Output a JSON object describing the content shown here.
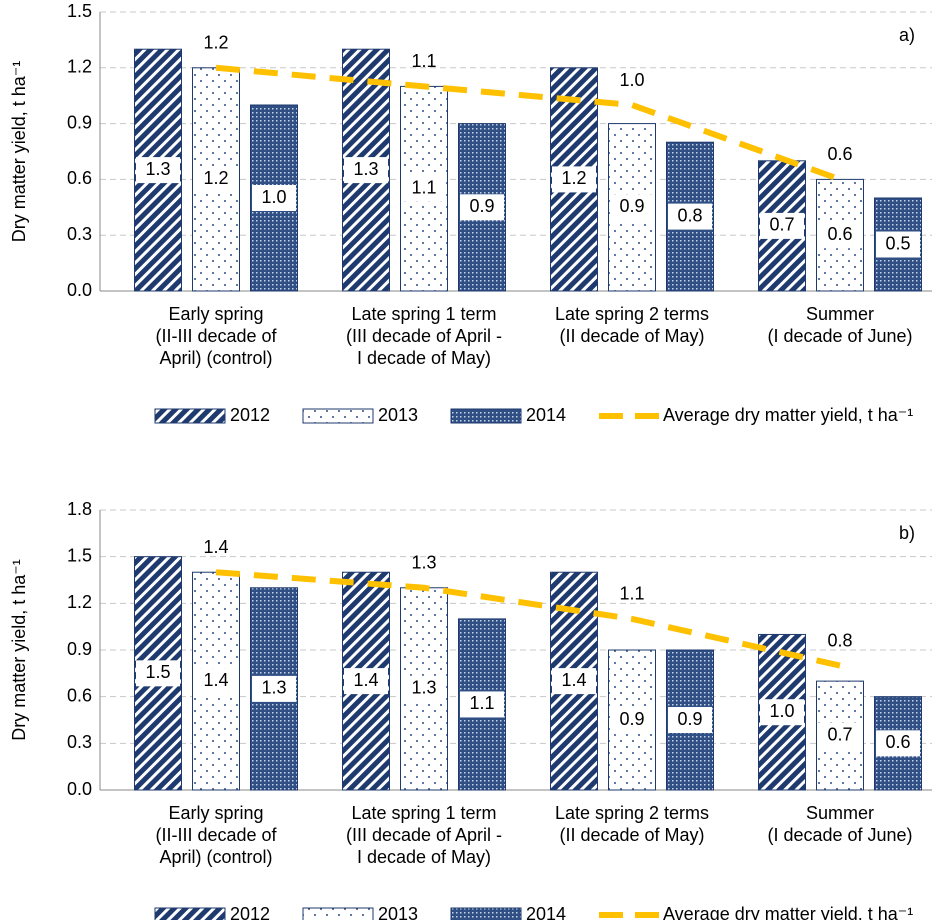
{
  "chart_data": [
    {
      "type": "bar",
      "panel_label": "a)",
      "y_label": "Dry matter yield, t ha⁻¹",
      "categories": [
        "Early spring\n(II-III decade of\nApril) (control)",
        "Late spring 1 term\n(III decade of April -\nI decade of May)",
        "Late spring 2 terms\n(II decade of May)",
        "Summer\n(I decade of June)"
      ],
      "series": [
        {
          "name": "2012",
          "color": "#1f3a6e",
          "values": [
            1.3,
            1.3,
            1.2,
            0.7
          ],
          "value_labels": [
            "1.3",
            "1.3",
            "1.2",
            "0.7"
          ]
        },
        {
          "name": "2013",
          "color": "#ffffff",
          "values": [
            1.2,
            1.1,
            0.9,
            0.6
          ],
          "value_labels": [
            "1.2",
            "1.1",
            "0.9",
            "0.6"
          ]
        },
        {
          "name": "2014",
          "color": "#2f4f85",
          "values": [
            1.0,
            0.9,
            0.8,
            0.5
          ],
          "value_labels": [
            "1.0",
            "0.9",
            "0.8",
            "0.5"
          ]
        },
        {
          "name": "Average dry matter yield, t ha⁻¹",
          "type": "line",
          "color": "#ffc000",
          "values": [
            1.2,
            1.1,
            1.0,
            0.6
          ],
          "value_labels": [
            "1.2",
            "1.1",
            "1.0",
            "0.6"
          ]
        }
      ],
      "ylim": [
        0,
        1.5
      ],
      "yticks": [
        {
          "value": 0,
          "label": "0.0"
        },
        0.3,
        0.6,
        0.9,
        1.2,
        1.5
      ],
      "grid": true
    },
    {
      "type": "bar",
      "panel_label": "b)",
      "y_label": "Dry matter yield, t ha⁻¹",
      "categories": [
        "Early spring\n(II-III decade of\nApril) (control)",
        "Late spring 1 term\n(III decade of April -\nI decade of May)",
        "Late spring 2 terms\n(II decade of May)",
        "Summer\n(I decade of June)"
      ],
      "series": [
        {
          "name": "2012",
          "color": "#1f3a6e",
          "values": [
            1.5,
            1.4,
            1.4,
            1.0
          ],
          "value_labels": [
            "1.5",
            "1.4",
            "1.4",
            "1.0"
          ]
        },
        {
          "name": "2013",
          "color": "#ffffff",
          "values": [
            1.4,
            1.3,
            0.9,
            0.7
          ],
          "value_labels": [
            "1.4",
            "1.3",
            "0.9",
            "0.7"
          ]
        },
        {
          "name": "2014",
          "color": "#2f4f85",
          "values": [
            1.3,
            1.1,
            0.9,
            0.6
          ],
          "value_labels": [
            "1.3",
            "1.1",
            "0.9",
            "0.6"
          ]
        },
        {
          "name": "Average dry matter yield, t ha⁻¹",
          "type": "line",
          "color": "#ffc000",
          "values": [
            1.4,
            1.3,
            1.1,
            0.8
          ],
          "value_labels": [
            "1.4",
            "1.3",
            "1.1",
            "0.8"
          ]
        }
      ],
      "ylim": [
        0,
        1.8
      ],
      "yticks": [
        {
          "value": 0,
          "label": "0.0"
        },
        0.3,
        0.6,
        0.9,
        1.2,
        1.5,
        1.8
      ],
      "grid": true
    }
  ]
}
